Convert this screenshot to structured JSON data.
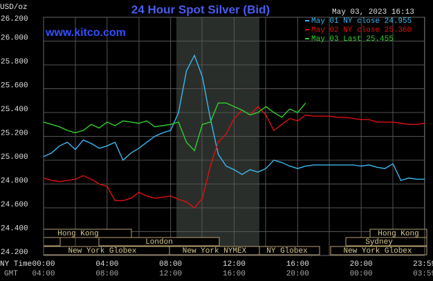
{
  "chart_data": {
    "type": "line",
    "title": "24 Hour Spot Silver (Bid)",
    "y_unit": "USD/oz",
    "timestamp": "May 03, 2023 16:13",
    "source": "www.kitco.com",
    "x": [
      0,
      0.5,
      1,
      1.5,
      2,
      2.5,
      3,
      3.5,
      4,
      4.5,
      5,
      5.5,
      6,
      6.5,
      7,
      7.5,
      8,
      8.5,
      9,
      9.5,
      10,
      10.5,
      11,
      11.5,
      12,
      12.5,
      13,
      13.5,
      14,
      14.5,
      15,
      15.5,
      16,
      16.5,
      17,
      17.5,
      18,
      18.5,
      19,
      19.5,
      20,
      20.5,
      21,
      21.5,
      22,
      22.5,
      23,
      23.5,
      24
    ],
    "series": [
      {
        "name": "May 01 NY close 24.955",
        "color": "#3cb8f0",
        "values": [
          25.03,
          25.06,
          25.12,
          25.15,
          25.09,
          25.17,
          25.14,
          25.1,
          25.12,
          25.15,
          25.0,
          25.06,
          25.1,
          25.15,
          25.2,
          25.23,
          25.25,
          25.4,
          25.75,
          25.88,
          25.7,
          25.35,
          25.05,
          24.95,
          24.92,
          24.88,
          24.92,
          24.9,
          24.93,
          25.0,
          24.98,
          24.95,
          24.93,
          24.95,
          24.96,
          24.96,
          24.96,
          24.96,
          24.96,
          24.96,
          24.95,
          24.96,
          24.94,
          24.93,
          24.97,
          24.83,
          24.85,
          24.84,
          24.84
        ]
      },
      {
        "name": "May 02 NY close 25.360",
        "color": "#e01010",
        "values": [
          24.85,
          24.83,
          24.82,
          24.83,
          24.84,
          24.87,
          24.84,
          24.8,
          24.78,
          24.66,
          24.66,
          24.68,
          24.73,
          24.7,
          24.68,
          24.69,
          24.7,
          24.67,
          24.65,
          24.6,
          24.68,
          24.95,
          25.15,
          25.22,
          25.35,
          25.42,
          25.38,
          25.45,
          25.38,
          25.25,
          25.3,
          25.35,
          25.33,
          25.38,
          25.37,
          25.37,
          25.37,
          25.36,
          25.36,
          25.35,
          25.34,
          25.34,
          25.32,
          25.32,
          25.32,
          25.31,
          25.3,
          25.3,
          25.31
        ]
      },
      {
        "name": "May 03 Last 25.455",
        "color": "#30d030",
        "values": [
          25.32,
          25.3,
          25.28,
          25.25,
          25.23,
          25.25,
          25.3,
          25.27,
          25.32,
          25.29,
          25.33,
          25.32,
          25.31,
          25.33,
          25.28,
          25.29,
          25.3,
          25.32,
          25.15,
          25.08,
          25.3,
          25.32,
          25.48,
          25.48,
          25.45,
          25.42,
          25.38,
          25.4,
          25.45,
          25.4,
          25.36,
          25.43,
          25.4,
          25.48,
          null,
          null,
          null,
          null,
          null,
          null,
          null,
          null,
          null,
          null,
          null,
          null,
          null,
          null,
          null
        ]
      }
    ],
    "xlim": [
      0,
      24
    ],
    "xticks": [
      {
        "value": 0,
        "label": "00:00"
      },
      {
        "value": 4,
        "label": "04:00"
      },
      {
        "value": 8,
        "label": "08:00"
      },
      {
        "value": 12,
        "label": "12:00"
      },
      {
        "value": 16,
        "label": "16:00"
      },
      {
        "value": 20,
        "label": "20:00"
      },
      {
        "value": 23.983,
        "label": "23:59"
      }
    ],
    "x_row_label": "NY Time",
    "gmt_row_label": "GMT",
    "gmt_labels": [
      "04:00",
      "08:00",
      "12:00",
      "16:00",
      "20:00",
      "00:00",
      "03:59"
    ],
    "ylim": [
      24.2,
      26.2
    ],
    "yticks": [
      {
        "value": 24.2,
        "label": "24.200"
      },
      {
        "value": 24.4,
        "label": "24.400"
      },
      {
        "value": 24.6,
        "label": "24.600"
      },
      {
        "value": 24.8,
        "label": "24.800"
      },
      {
        "value": 25.0,
        "label": "25.000"
      },
      {
        "value": 25.2,
        "label": "25.200"
      },
      {
        "value": 25.4,
        "label": "25.400"
      },
      {
        "value": 25.6,
        "label": "25.600"
      },
      {
        "value": 25.8,
        "label": "25.800"
      },
      {
        "value": 26.0,
        "label": "26.000"
      },
      {
        "value": 26.2,
        "label": "26.200"
      }
    ],
    "grid": true,
    "sessions": [
      "Hong Kong",
      "Hong Kong",
      "London",
      "Sydney",
      "New York Globex",
      "New York NYMEX",
      "NY Globex",
      "New York Globex"
    ]
  }
}
